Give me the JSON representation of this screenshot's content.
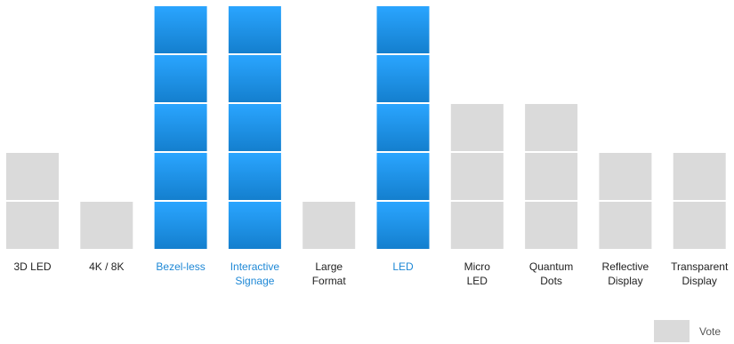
{
  "chart_data": {
    "type": "bar",
    "style": "stacked unit blocks (one block per vote)",
    "categories": [
      [
        "3D LED"
      ],
      [
        "4K / 8K"
      ],
      [
        "Bezel-less"
      ],
      [
        "Interactive",
        "Signage"
      ],
      [
        "Large",
        "Format"
      ],
      [
        "LED"
      ],
      [
        "Micro",
        "LED"
      ],
      [
        "Quantum",
        "Dots"
      ],
      [
        "Reflective",
        "Display"
      ],
      [
        "Transparent",
        "Display"
      ]
    ],
    "values": [
      2,
      1,
      5,
      5,
      1,
      5,
      3,
      3,
      2,
      2
    ],
    "highlighted": [
      false,
      false,
      true,
      true,
      false,
      true,
      false,
      false,
      false,
      false
    ],
    "ylim": [
      0,
      5
    ],
    "grid": false,
    "legend": {
      "position": "bottom-right",
      "label": "Vote"
    },
    "colors": {
      "default_block": "#dadada",
      "highlight_top": "#2aa5ff",
      "highlight_bottom": "#147fce",
      "default_label": "#222222",
      "highlight_label": "#1e88d6"
    }
  }
}
